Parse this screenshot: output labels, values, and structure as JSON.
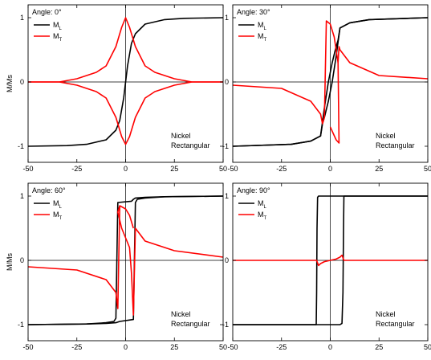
{
  "figure": {
    "ylabel": "M/Ms"
  },
  "colors": {
    "ml": "#000000",
    "mt": "#ff0000"
  },
  "chart_data": [
    {
      "type": "line",
      "annotation": "Angle: 0°",
      "note": [
        "Nickel",
        "Rectangular"
      ],
      "legend": [
        "M",
        "M"
      ],
      "legend_sub": [
        "L",
        "T"
      ],
      "xlim": [
        -50,
        50
      ],
      "ylim": [
        -1.25,
        1.2
      ],
      "xticks": [
        -50,
        -25,
        0,
        25,
        50
      ],
      "yticks": [
        -1,
        0,
        1
      ],
      "ylabel": "M/Ms",
      "series": [
        {
          "color": "#000000",
          "x": [
            -50,
            -30,
            -20,
            -10,
            -5,
            -3,
            -1,
            0,
            1,
            3,
            5,
            10,
            20,
            30,
            50
          ],
          "y": [
            -1.0,
            -0.99,
            -0.97,
            -0.9,
            -0.75,
            -0.6,
            -0.25,
            0,
            0.25,
            0.6,
            0.75,
            0.9,
            0.97,
            0.99,
            1.0
          ]
        },
        {
          "color": "#ff0000",
          "x": [
            -50,
            -34,
            -25,
            -15,
            -10,
            -5,
            -2,
            0,
            2,
            5,
            10,
            15,
            25,
            34,
            50
          ],
          "y": [
            0,
            0,
            0.05,
            0.15,
            0.25,
            0.55,
            0.85,
            1.0,
            0.85,
            0.55,
            0.25,
            0.15,
            0.05,
            0,
            0
          ]
        },
        {
          "color": "#ff0000",
          "x": [
            -50,
            -34,
            -25,
            -15,
            -10,
            -5,
            -2,
            0,
            2,
            5,
            10,
            15,
            25,
            34,
            50
          ],
          "y": [
            0,
            0,
            -0.05,
            -0.15,
            -0.25,
            -0.55,
            -0.85,
            -0.97,
            -0.85,
            -0.55,
            -0.25,
            -0.15,
            -0.05,
            0,
            0
          ]
        }
      ]
    },
    {
      "type": "line",
      "annotation": "Angle: 30°",
      "note": [
        "Nickel",
        "Rectangular"
      ],
      "legend": [
        "M",
        "M"
      ],
      "legend_sub": [
        "L",
        "T"
      ],
      "xlim": [
        -50,
        50
      ],
      "ylim": [
        -1.25,
        1.2
      ],
      "xticks": [
        -50,
        -25,
        0,
        25,
        50
      ],
      "yticks": [
        -1,
        0,
        1
      ],
      "ylabel": "M/Ms",
      "series": [
        {
          "color": "#000000",
          "x": [
            -50,
            -20,
            -10,
            -5,
            -3,
            -1,
            1,
            3,
            4,
            5,
            10,
            20,
            50
          ],
          "y": [
            -1.0,
            -0.97,
            -0.92,
            -0.84,
            -0.4,
            0.0,
            0.3,
            0.55,
            0.65,
            0.84,
            0.92,
            0.97,
            1.0
          ]
        },
        {
          "color": "#000000",
          "x": [
            -50,
            -20,
            -10,
            -5,
            -4,
            -3,
            -1,
            1,
            3,
            5,
            10,
            20,
            50
          ],
          "y": [
            -1.0,
            -0.97,
            -0.92,
            -0.84,
            -0.65,
            -0.55,
            -0.3,
            0.0,
            0.4,
            0.84,
            0.92,
            0.97,
            1.0
          ]
        },
        {
          "color": "#ff0000",
          "x": [
            -50,
            -25,
            -10,
            -5,
            -4,
            -3,
            -2,
            0,
            2,
            4,
            4.5,
            3,
            0
          ],
          "y": [
            -0.05,
            -0.1,
            -0.3,
            -0.5,
            -0.65,
            -0.55,
            0.95,
            0.9,
            0.7,
            0.3,
            -0.95,
            -0.9,
            -0.7
          ]
        },
        {
          "color": "#ff0000",
          "x": [
            4,
            4.5,
            5,
            10,
            25,
            50
          ],
          "y": [
            0.3,
            0.55,
            0.5,
            0.3,
            0.1,
            0.05
          ]
        }
      ]
    },
    {
      "type": "line",
      "annotation": "Angle: 60°",
      "note": [
        "Nickel",
        "Rectangular"
      ],
      "legend": [
        "M",
        "M"
      ],
      "legend_sub": [
        "L",
        "T"
      ],
      "xlim": [
        -50,
        50
      ],
      "ylim": [
        -1.25,
        1.2
      ],
      "xticks": [
        -50,
        -25,
        0,
        25,
        50
      ],
      "yticks": [
        -1,
        0,
        1
      ],
      "ylabel": "M/Ms",
      "series": [
        {
          "color": "#000000",
          "x": [
            -50,
            -20,
            -10,
            -6,
            -5,
            -4,
            3,
            4,
            5,
            10,
            20,
            50
          ],
          "y": [
            -1.0,
            -0.99,
            -0.97,
            -0.95,
            -0.9,
            0.9,
            0.92,
            0.95,
            0.97,
            0.98,
            0.99,
            1.0
          ]
        },
        {
          "color": "#000000",
          "x": [
            -50,
            -20,
            -10,
            -5,
            -3,
            4,
            5,
            6,
            10,
            20,
            50
          ],
          "y": [
            -1.0,
            -0.99,
            -0.98,
            -0.97,
            -0.95,
            -0.92,
            0.9,
            0.95,
            0.97,
            0.99,
            1.0
          ]
        },
        {
          "color": "#ff0000",
          "x": [
            -50,
            -25,
            -10,
            -5,
            -4,
            -3,
            0,
            2,
            3,
            4
          ],
          "y": [
            -0.1,
            -0.15,
            -0.3,
            -0.5,
            -0.75,
            0.85,
            0.8,
            0.7,
            0.6,
            0.5
          ]
        },
        {
          "color": "#ff0000",
          "x": [
            -3,
            -4,
            -2,
            2,
            3,
            4,
            5,
            10,
            25,
            50
          ],
          "y": [
            0.85,
            0.75,
            0.5,
            0.2,
            -0.2,
            -0.85,
            0.5,
            0.3,
            0.15,
            0.05
          ]
        }
      ]
    },
    {
      "type": "line",
      "annotation": "Angle: 90°",
      "note": [
        "Nickel",
        "Rectangular"
      ],
      "legend": [
        "M",
        "M"
      ],
      "legend_sub": [
        "L",
        "T"
      ],
      "xlim": [
        -50,
        50
      ],
      "ylim": [
        -1.25,
        1.2
      ],
      "xticks": [
        -50,
        -25,
        0,
        25,
        50
      ],
      "yticks": [
        -1,
        0,
        1
      ],
      "ylabel": "M/Ms",
      "series": [
        {
          "color": "#000000",
          "x": [
            -50,
            5,
            6,
            6.5,
            6.8,
            7,
            50
          ],
          "y": [
            -1.0,
            -1.0,
            -0.98,
            -0.5,
            0.5,
            1.0,
            1.0
          ]
        },
        {
          "color": "#000000",
          "x": [
            -50,
            -7.2,
            -7,
            -6.8,
            -6.5,
            -6,
            50
          ],
          "y": [
            -1.0,
            -1.0,
            -0.5,
            0.5,
            0.98,
            1.0,
            1.0
          ]
        },
        {
          "color": "#ff0000",
          "x": [
            -50,
            -7,
            -6,
            -5,
            -3,
            0,
            3,
            5,
            6,
            7,
            50
          ],
          "y": [
            0,
            0,
            -0.08,
            -0.05,
            -0.02,
            0,
            0.02,
            0.05,
            0.08,
            0,
            0
          ]
        }
      ]
    }
  ]
}
